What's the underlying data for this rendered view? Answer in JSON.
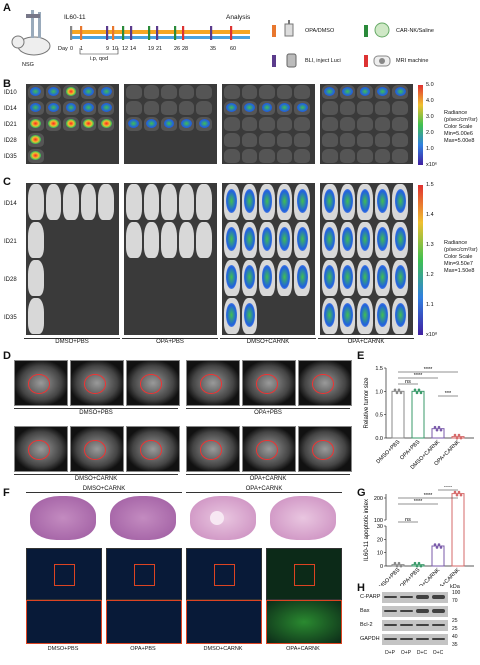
{
  "panels": {
    "A": "A",
    "B": "B",
    "C": "C",
    "D": "D",
    "E": "E",
    "F": "F",
    "G": "G",
    "H": "H"
  },
  "timeline": {
    "cell_line": "IL60-11",
    "start": "Day",
    "days": [
      "0",
      "1",
      "9",
      "10",
      "12",
      "14",
      "19",
      "21",
      "26",
      "28",
      "35",
      "60"
    ],
    "ip": "i.p, qod",
    "analysis": "Analysis",
    "mouse": "NSG"
  },
  "legend": {
    "opa": "OPA/DMSO",
    "carnk": "CAR-NK/Saline",
    "bli": "BLI, inject Luci",
    "mri": "MRI machine"
  },
  "bli_b": {
    "rows": [
      "ID10",
      "ID14",
      "ID21",
      "ID28",
      "ID35"
    ],
    "scale_ticks": [
      "5.0",
      "4.0",
      "3.0",
      "2.0",
      "1.0",
      "x10⁶"
    ],
    "scale_text": [
      "Radiance",
      "(p/sec/cm²/sr)",
      "Color Scale",
      "Min=5.00e6",
      "Max=5.00e8"
    ]
  },
  "bli_c": {
    "rows": [
      "ID14",
      "ID21",
      "ID28",
      "ID35"
    ],
    "scale_ticks": [
      "1.5",
      "1.4",
      "1.3",
      "1.2",
      "1.1",
      "x10⁸"
    ],
    "scale_text": [
      "Radiance",
      "(p/sec/cm²/sr)",
      "Color Scale",
      "Min=9.50e7",
      "Max=1.50e8"
    ]
  },
  "groups": [
    "DMSO+PBS",
    "OPA+PBS",
    "DMSO+CARNK",
    "OPA+CARNK"
  ],
  "chart_data": [
    {
      "type": "bar",
      "panel": "E",
      "categories": [
        "DMSO+PBS",
        "OPA+PBS",
        "DMSO+CARNK",
        "OPA+CARNK"
      ],
      "values": [
        1.0,
        1.0,
        0.2,
        0.03
      ],
      "ylabel": "Relative tumor size",
      "ylim": [
        0.0,
        1.5
      ],
      "yticks": [
        "0.0",
        "0.5",
        "1.0",
        "1.5"
      ],
      "significance": [
        "ns",
        "****",
        "****",
        "***"
      ]
    },
    {
      "type": "bar",
      "panel": "G",
      "categories": [
        "DMSO+PBS",
        "OPA+PBS",
        "DMSO+CARNK",
        "OPA+CARNK"
      ],
      "values": [
        1,
        1,
        15,
        220
      ],
      "ylabel": "IL60-11 apoptotic index",
      "yticks": [
        "0",
        "10",
        "20",
        "30",
        "100",
        "200"
      ],
      "significance": [
        "ns",
        "****",
        "****",
        "****"
      ]
    }
  ],
  "wb": {
    "rows": [
      "C-PARP",
      "Bax",
      "Bcl-2",
      "GAPDH"
    ],
    "kda": "kDa",
    "markers": [
      "100",
      "70",
      "25",
      "25",
      "40",
      "35"
    ],
    "lanes": [
      "D+P",
      "O+P",
      "D+C",
      "O+C"
    ]
  }
}
